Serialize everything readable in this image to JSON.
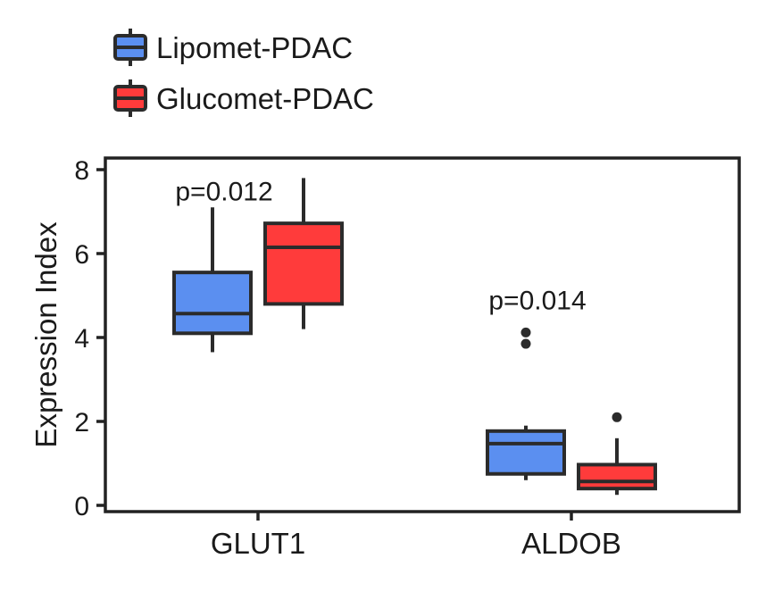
{
  "chart_data": {
    "type": "box",
    "categories": [
      "GLUT1",
      "ALDOB"
    ],
    "ylabel": "Expression Index",
    "ylim": [
      0,
      8.2
    ],
    "yticks": [
      0,
      2,
      4,
      6,
      8
    ],
    "legend_position": "top-left",
    "series": [
      {
        "name": "Lipomet-PDAC",
        "color": "#5b8ff0",
        "boxes": [
          {
            "whisker_low": 3.65,
            "q1": 4.1,
            "median": 4.57,
            "q3": 5.55,
            "whisker_high": 7.1,
            "outliers": []
          },
          {
            "whisker_low": 0.6,
            "q1": 0.75,
            "median": 1.47,
            "q3": 1.77,
            "whisker_high": 1.9,
            "outliers": [
              3.85,
              4.12
            ]
          }
        ]
      },
      {
        "name": "Glucomet-PDAC",
        "color": "#ff3b3b",
        "boxes": [
          {
            "whisker_low": 4.2,
            "q1": 4.8,
            "median": 6.15,
            "q3": 6.72,
            "whisker_high": 7.8,
            "outliers": []
          },
          {
            "whisker_low": 0.25,
            "q1": 0.4,
            "median": 0.57,
            "q3": 0.97,
            "whisker_high": 1.6,
            "outliers": [
              2.1
            ]
          }
        ]
      }
    ],
    "annotations": [
      {
        "text": "p=0.012",
        "category": "GLUT1",
        "y": 7.5
      },
      {
        "text": "p=0.014",
        "category": "ALDOB",
        "y": 4.9
      }
    ]
  }
}
